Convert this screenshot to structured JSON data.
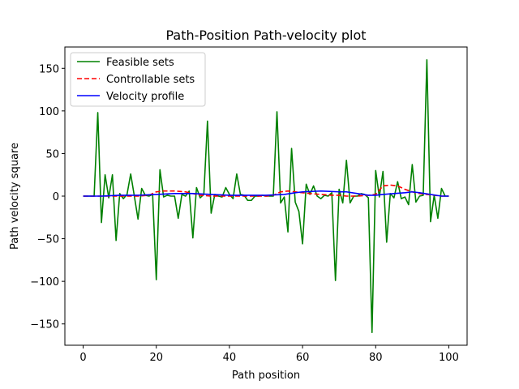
{
  "chart_data": {
    "type": "line",
    "title": "Path-Position Path-velocity plot",
    "xlabel": "Path position",
    "ylabel": "Path velocity square",
    "xlim": [
      -5,
      105
    ],
    "ylim": [
      -175,
      175
    ],
    "xticks": [
      0,
      20,
      40,
      60,
      80,
      100
    ],
    "yticks": [
      -150,
      -100,
      -50,
      0,
      50,
      100,
      150
    ],
    "grid": false,
    "legend_position": "top-left",
    "series": [
      {
        "name": "Feasible sets",
        "color": "#008000",
        "linestyle": "solid",
        "x": [
          0,
          1,
          2,
          3,
          4,
          5,
          6,
          7,
          8,
          9,
          10,
          11,
          12,
          13,
          14,
          15,
          16,
          17,
          18,
          19,
          20,
          21,
          22,
          23,
          24,
          25,
          26,
          27,
          28,
          29,
          30,
          31,
          32,
          33,
          34,
          35,
          36,
          37,
          38,
          39,
          40,
          41,
          42,
          43,
          44,
          45,
          46,
          47,
          48,
          49,
          50,
          51,
          52,
          53,
          54,
          55,
          56,
          57,
          58,
          59,
          60,
          61,
          62,
          63,
          64,
          65,
          66,
          67,
          68,
          69,
          70,
          71,
          72,
          73,
          74,
          75,
          76,
          77,
          78,
          79,
          80,
          81,
          82,
          83,
          84,
          85,
          86,
          87,
          88,
          89,
          90,
          91,
          92,
          93,
          94,
          95,
          96,
          97,
          98,
          99,
          100
        ],
        "y": [
          0,
          0,
          0,
          0,
          98,
          -31,
          25,
          -2,
          25,
          -52,
          3,
          -3,
          2,
          26,
          0,
          -27,
          9,
          1,
          0,
          2,
          -98,
          31,
          -1,
          1,
          0,
          0,
          -26,
          2,
          0,
          6,
          -49,
          10,
          -2,
          2,
          88,
          -20,
          2,
          0,
          -1,
          10,
          2,
          -3,
          26,
          2,
          1,
          -5,
          -5,
          0,
          0,
          1,
          0,
          0,
          0,
          99,
          -8,
          -1,
          -42,
          56,
          -7,
          -18,
          -56,
          14,
          2,
          12,
          0,
          -3,
          1,
          0,
          4,
          -99,
          8,
          -8,
          42,
          -8,
          0,
          0,
          3,
          2,
          -2,
          -160,
          30,
          -1,
          29,
          -54,
          3,
          -2,
          17,
          -3,
          -1,
          -10,
          37,
          -7,
          0,
          1,
          160,
          -30,
          1,
          -26,
          9,
          0,
          0
        ]
      },
      {
        "name": "Controllable sets",
        "color": "#ff0000",
        "linestyle": "dashed",
        "x": [
          0,
          5,
          10,
          15,
          18,
          20,
          22,
          25,
          28,
          30,
          32,
          35,
          38,
          40,
          45,
          50,
          52,
          54,
          56,
          58,
          60,
          62,
          65,
          68,
          70,
          72,
          75,
          78,
          80,
          82,
          84,
          86,
          88,
          90,
          92,
          94,
          96,
          98,
          100
        ],
        "y": [
          0,
          0,
          0,
          0,
          1,
          5,
          6,
          6,
          5,
          3,
          1,
          0,
          0,
          0,
          0,
          0,
          1,
          5,
          6,
          5,
          4,
          3,
          2,
          1,
          1,
          0,
          0,
          1,
          2,
          12,
          13,
          12,
          8,
          5,
          3,
          2,
          1,
          0,
          0
        ]
      },
      {
        "name": "Velocity profile",
        "color": "#0000ff",
        "linestyle": "solid",
        "x": [
          0,
          5,
          10,
          15,
          20,
          25,
          30,
          35,
          40,
          45,
          50,
          55,
          58,
          60,
          65,
          70,
          72,
          75,
          78,
          80,
          82,
          85,
          88,
          90,
          92,
          95,
          98,
          100
        ],
        "y": [
          0,
          0,
          1,
          1,
          2,
          3,
          3,
          2,
          1,
          1,
          1,
          2,
          4,
          5,
          6,
          5,
          5,
          3,
          1,
          1,
          2,
          3,
          4,
          5,
          4,
          2,
          0,
          0
        ]
      }
    ]
  }
}
